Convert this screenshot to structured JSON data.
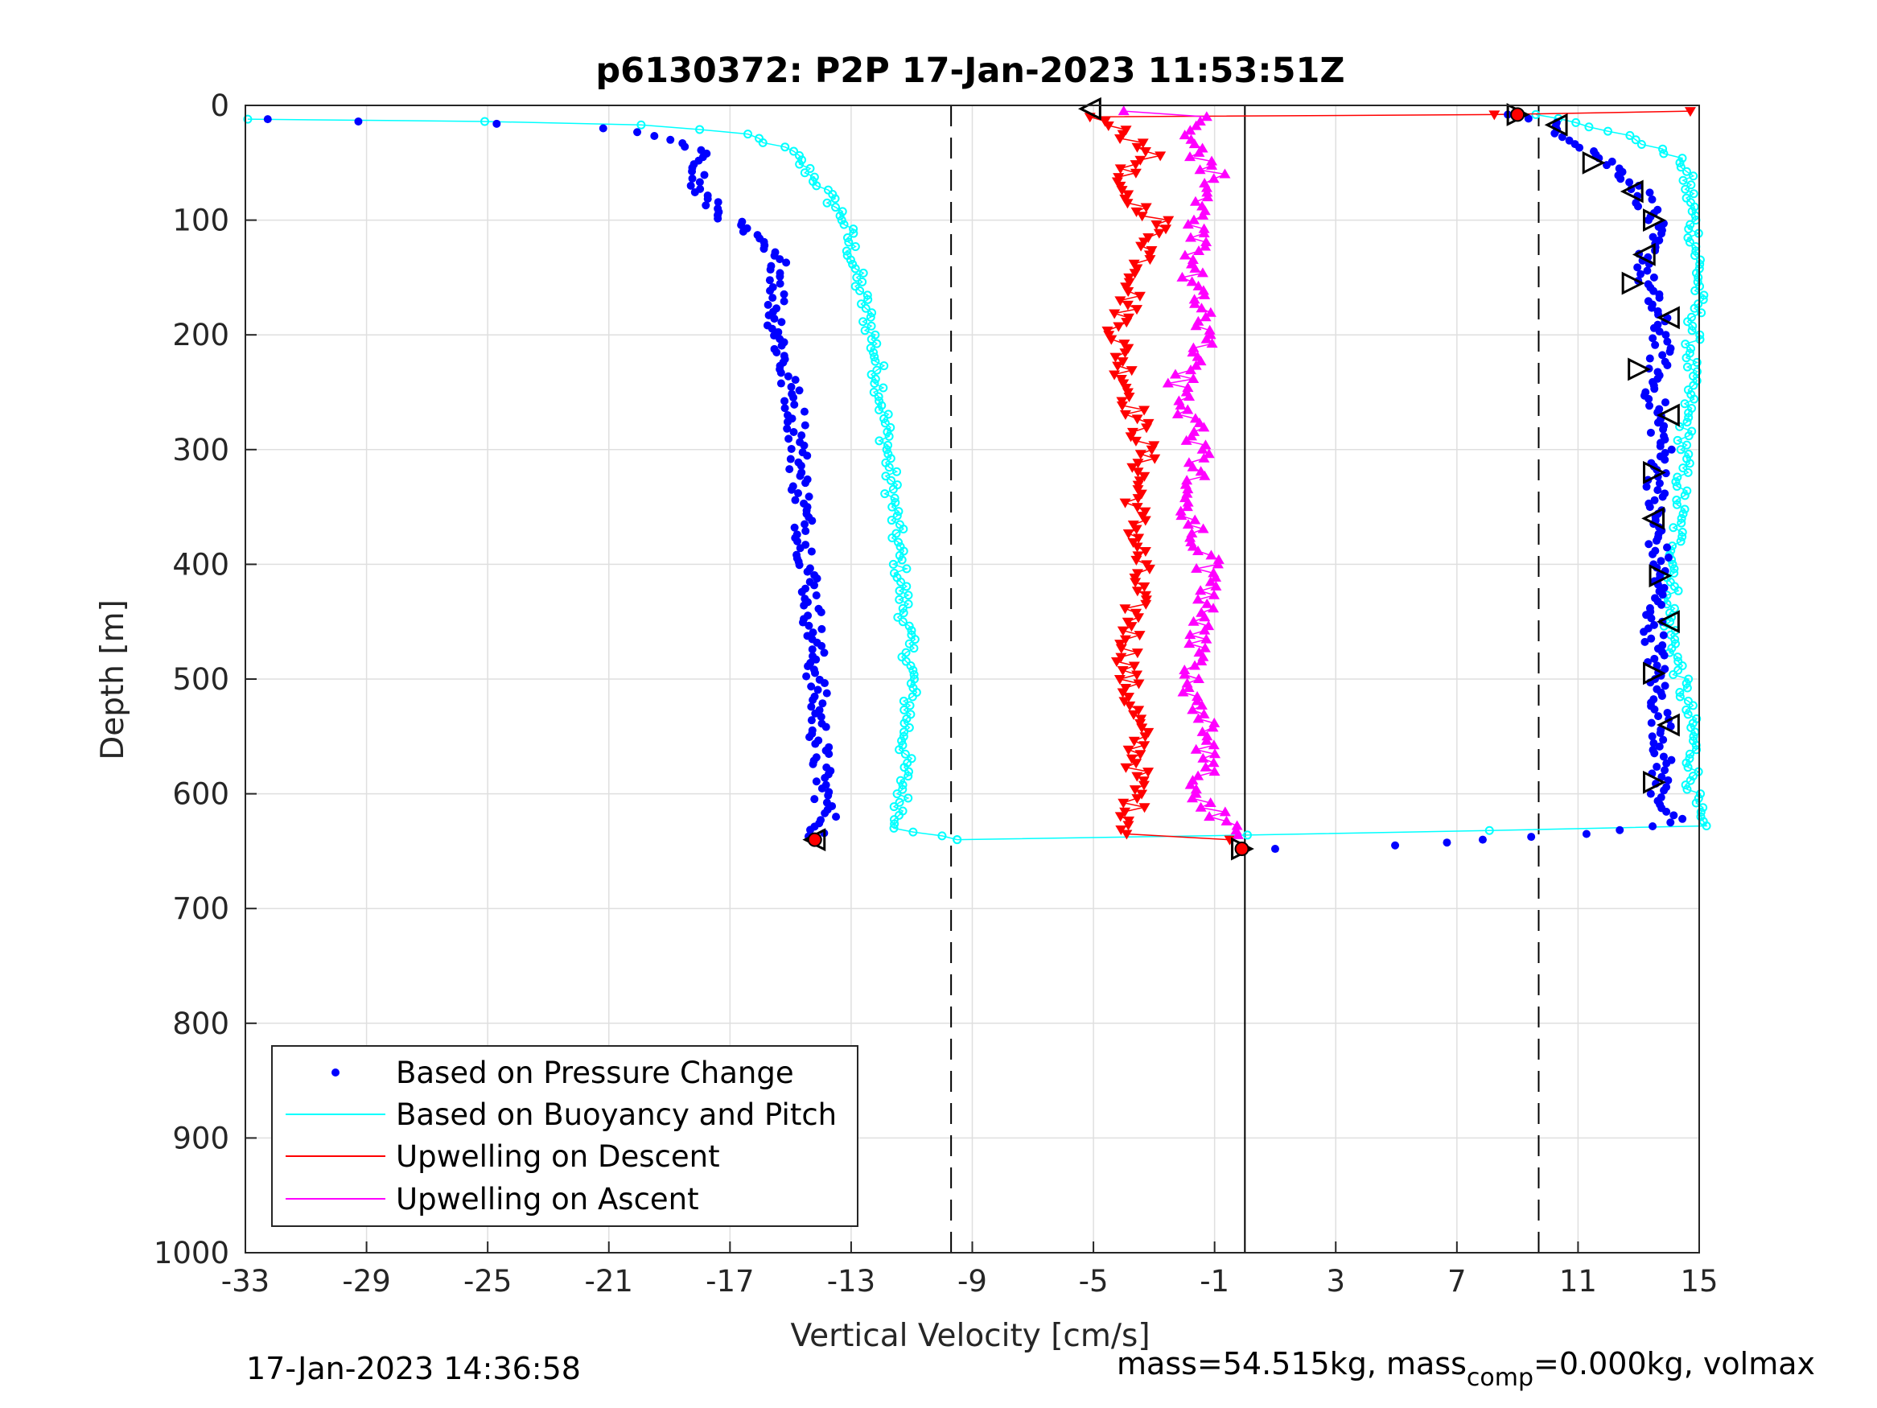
{
  "chart_data": {
    "type": "scatter",
    "title": "p6130372: P2P 17-Jan-2023 11:53:51Z",
    "xlabel": "Vertical Velocity [cm/s]",
    "ylabel": "Depth [m]",
    "xlim": [
      -33,
      15
    ],
    "ylim": [
      0,
      1000
    ],
    "y_reversed": true,
    "x_ticks": [
      "-33",
      "-29",
      "-25",
      "-21",
      "-17",
      "-13",
      "-9",
      "-5",
      "-1",
      "3",
      "7",
      "11",
      "15"
    ],
    "y_ticks": [
      "0",
      "100",
      "200",
      "300",
      "400",
      "500",
      "600",
      "700",
      "800",
      "900",
      "1000"
    ],
    "grid": true,
    "legend_position": "bottom-left",
    "reference_lines": {
      "dashed_x": [
        -9.7,
        9.7
      ],
      "solid_x": [
        0
      ]
    },
    "series": [
      {
        "name": "Based on Pressure Change",
        "color": "#0000ff",
        "marker": "dot",
        "descent": [
          [
            -32.5,
            12
          ],
          [
            -29,
            14
          ],
          [
            -25,
            16
          ],
          [
            -21,
            20
          ],
          [
            -19,
            30
          ],
          [
            -17.8,
            45
          ],
          [
            -18.2,
            70
          ],
          [
            -17.5,
            90
          ],
          [
            -16.5,
            110
          ],
          [
            -15.3,
            140
          ],
          [
            -15.5,
            180
          ],
          [
            -15.2,
            230
          ],
          [
            -14.8,
            270
          ],
          [
            -14.7,
            320
          ],
          [
            -14.5,
            380
          ],
          [
            -14.3,
            430
          ],
          [
            -14.2,
            480
          ],
          [
            -14.1,
            530
          ],
          [
            -14,
            580
          ],
          [
            -13.8,
            620
          ],
          [
            -14.2,
            640
          ]
        ],
        "ascent": [
          [
            8.5,
            8
          ],
          [
            10,
            15
          ],
          [
            11.5,
            40
          ],
          [
            13,
            70
          ],
          [
            13.5,
            100
          ],
          [
            13.2,
            150
          ],
          [
            13.8,
            200
          ],
          [
            13.5,
            250
          ],
          [
            13.8,
            300
          ],
          [
            13.5,
            350
          ],
          [
            13.7,
            400
          ],
          [
            13.5,
            450
          ],
          [
            13.6,
            500
          ],
          [
            13.8,
            550
          ],
          [
            13.7,
            600
          ],
          [
            14.2,
            625
          ],
          [
            11,
            635
          ],
          [
            8,
            640
          ],
          [
            5,
            645
          ],
          [
            1,
            648
          ]
        ]
      },
      {
        "name": "Based on Buoyancy and Pitch",
        "color": "#00ffff",
        "marker": "line",
        "descent": [
          [
            -33,
            12
          ],
          [
            -25,
            14
          ],
          [
            -20,
            17
          ],
          [
            -16.5,
            25
          ],
          [
            -15,
            40
          ],
          [
            -14,
            70
          ],
          [
            -13.2,
            100
          ],
          [
            -12.8,
            150
          ],
          [
            -12.3,
            200
          ],
          [
            -12,
            250
          ],
          [
            -11.8,
            300
          ],
          [
            -11.6,
            350
          ],
          [
            -11.4,
            400
          ],
          [
            -11.2,
            450
          ],
          [
            -11,
            500
          ],
          [
            -11.2,
            550
          ],
          [
            -11.3,
            600
          ],
          [
            -11.4,
            630
          ],
          [
            -9.5,
            640
          ]
        ],
        "ascent": [
          [
            9.5,
            8
          ],
          [
            11,
            15
          ],
          [
            13,
            30
          ],
          [
            14.5,
            50
          ],
          [
            14.8,
            100
          ],
          [
            15,
            150
          ],
          [
            14.8,
            200
          ],
          [
            14.5,
            300
          ],
          [
            14.2,
            400
          ],
          [
            14,
            450
          ],
          [
            14.4,
            500
          ],
          [
            14.8,
            550
          ],
          [
            14.8,
            600
          ],
          [
            15,
            628
          ],
          [
            8,
            632
          ],
          [
            0,
            636
          ],
          [
            -9.5,
            640
          ]
        ]
      },
      {
        "name": "Upwelling on Descent",
        "color": "#ff0000",
        "marker": "triangle-down",
        "values": [
          [
            15,
            5
          ],
          [
            8,
            8
          ],
          [
            -5,
            10
          ],
          [
            -3,
            40
          ],
          [
            -4.5,
            70
          ],
          [
            -2.8,
            100
          ],
          [
            -3.2,
            130
          ],
          [
            -3.8,
            170
          ],
          [
            -4.2,
            200
          ],
          [
            -3.8,
            250
          ],
          [
            -3.3,
            300
          ],
          [
            -3.6,
            350
          ],
          [
            -3.5,
            400
          ],
          [
            -3.7,
            450
          ],
          [
            -3.9,
            500
          ],
          [
            -3.5,
            550
          ],
          [
            -3.6,
            600
          ],
          [
            -3.8,
            635
          ],
          [
            -0.5,
            640
          ]
        ]
      },
      {
        "name": "Upwelling on Ascent",
        "color": "#ff00ff",
        "marker": "triangle-up",
        "values": [
          [
            -0.2,
            636
          ],
          [
            -1.5,
            600
          ],
          [
            -1.2,
            550
          ],
          [
            -1.8,
            500
          ],
          [
            -1.4,
            450
          ],
          [
            -1.2,
            400
          ],
          [
            -2,
            350
          ],
          [
            -1.4,
            300
          ],
          [
            -2.3,
            250
          ],
          [
            -1.3,
            200
          ],
          [
            -1.8,
            150
          ],
          [
            -1.5,
            100
          ],
          [
            -1,
            60
          ],
          [
            -2,
            30
          ],
          [
            -1.2,
            10
          ],
          [
            -4,
            5
          ]
        ]
      }
    ],
    "black_triangle_markers": [
      [
        -5.1,
        3
      ],
      [
        9,
        8
      ],
      [
        10.3,
        17
      ],
      [
        11.5,
        50
      ],
      [
        12.8,
        75
      ],
      [
        13.5,
        100
      ],
      [
        13.2,
        130
      ],
      [
        12.8,
        155
      ],
      [
        14,
        185
      ],
      [
        13,
        230
      ],
      [
        14,
        270
      ],
      [
        13.5,
        320
      ],
      [
        13.5,
        360
      ],
      [
        13.7,
        410
      ],
      [
        14,
        450
      ],
      [
        13.5,
        495
      ],
      [
        14,
        540
      ],
      [
        13.5,
        590
      ],
      [
        -14.2,
        640
      ],
      [
        -0.1,
        648
      ]
    ],
    "footer_left": "17-Jan-2023 14:36:58",
    "footer_right_prefix": "mass=54.515kg, mass",
    "footer_right_subscript": "comp",
    "footer_right_suffix": "=0.000kg, volmax"
  }
}
